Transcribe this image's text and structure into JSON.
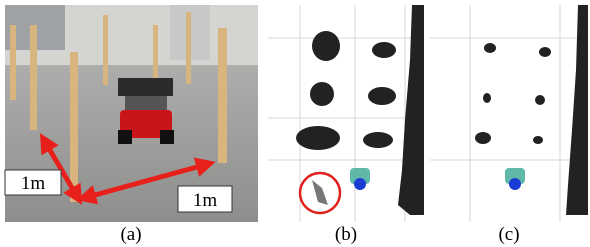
{
  "figure": {
    "panels": [
      {
        "caption": "(a)",
        "labels": [
          "1m",
          "1m"
        ]
      },
      {
        "caption": "(b)"
      },
      {
        "caption": "(c)"
      }
    ]
  }
}
